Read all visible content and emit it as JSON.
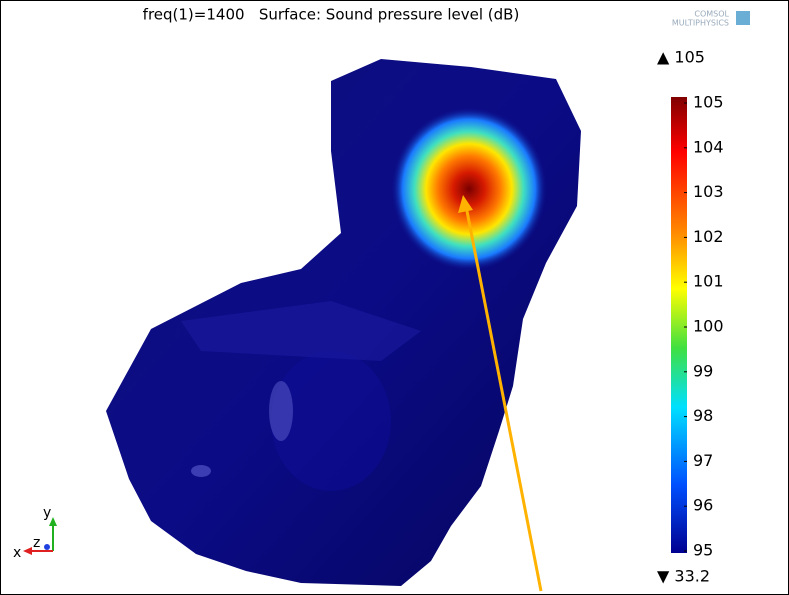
{
  "title": "freq(1)=1400   Surface: Sound pressure level (dB)",
  "logo": [
    "COMSOL",
    "MULTIPHYSICS"
  ],
  "color_range": {
    "max_label": "▲ 105",
    "min_label": "▼ 33.2",
    "ticks": [
      105,
      104,
      103,
      102,
      101,
      100,
      99,
      98,
      97,
      96,
      95
    ]
  },
  "axes": {
    "x": "x",
    "y": "y",
    "z": "z"
  }
}
